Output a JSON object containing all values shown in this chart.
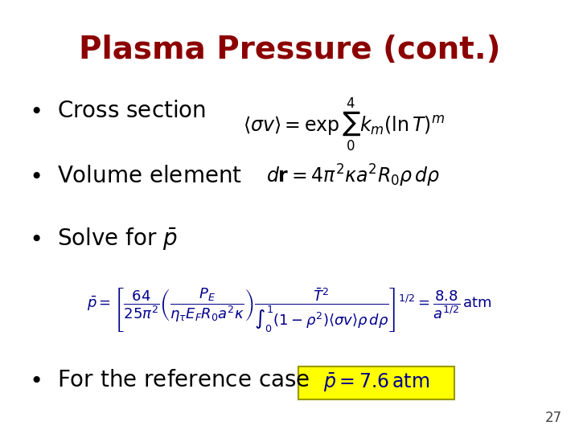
{
  "title": "Plasma Pressure (cont.)",
  "title_color": "#8B0000",
  "title_fontsize": 28,
  "background_color": "#ffffff",
  "bullet_color": "#000000",
  "bullet_fontsize": 20,
  "formula_color": "#00008B",
  "page_number": "27",
  "bullets": [
    "Cross section",
    "Volume element",
    "Solve for"
  ],
  "highlight_color": "#FFFF00",
  "highlight_border": "#FFD700"
}
